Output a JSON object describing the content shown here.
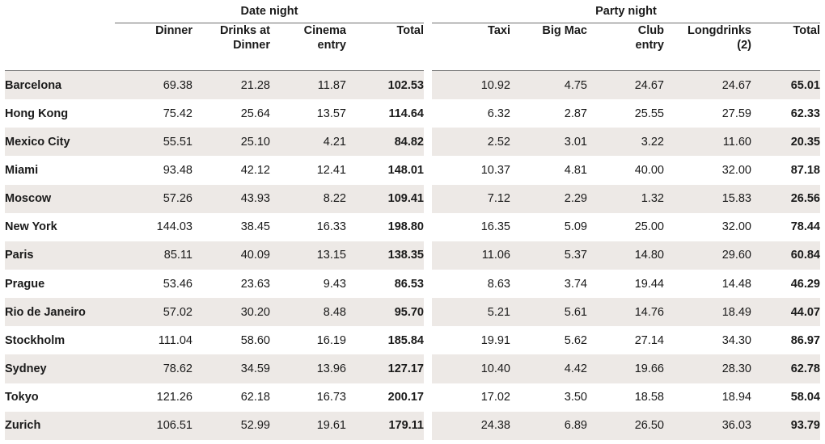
{
  "chart_data": {
    "type": "table",
    "groups": [
      {
        "name": "Date night",
        "columns": [
          "Dinner",
          "Drinks at Dinner",
          "Cinema entry",
          "Total"
        ]
      },
      {
        "name": "Party night",
        "columns": [
          "Taxi",
          "Big Mac",
          "Club entry",
          "Longdrinks (2)",
          "Total"
        ]
      }
    ],
    "header_lines": {
      "date": [
        [
          "Dinner"
        ],
        [
          "Drinks at",
          "Dinner"
        ],
        [
          "Cinema",
          "entry"
        ],
        [
          "Total"
        ]
      ],
      "party": [
        [
          "Taxi"
        ],
        [
          "Big Mac"
        ],
        [
          "Club",
          "entry"
        ],
        [
          "Longdrinks",
          "(2)"
        ],
        [
          "Total"
        ]
      ]
    },
    "rows": [
      {
        "city": "Barcelona",
        "date": [
          "69.38",
          "21.28",
          "11.87",
          "102.53"
        ],
        "party": [
          "10.92",
          "4.75",
          "24.67",
          "24.67",
          "65.01"
        ]
      },
      {
        "city": "Hong Kong",
        "date": [
          "75.42",
          "25.64",
          "13.57",
          "114.64"
        ],
        "party": [
          "6.32",
          "2.87",
          "25.55",
          "27.59",
          "62.33"
        ]
      },
      {
        "city": "Mexico City",
        "date": [
          "55.51",
          "25.10",
          "4.21",
          "84.82"
        ],
        "party": [
          "2.52",
          "3.01",
          "3.22",
          "11.60",
          "20.35"
        ]
      },
      {
        "city": "Miami",
        "date": [
          "93.48",
          "42.12",
          "12.41",
          "148.01"
        ],
        "party": [
          "10.37",
          "4.81",
          "40.00",
          "32.00",
          "87.18"
        ]
      },
      {
        "city": "Moscow",
        "date": [
          "57.26",
          "43.93",
          "8.22",
          "109.41"
        ],
        "party": [
          "7.12",
          "2.29",
          "1.32",
          "15.83",
          "26.56"
        ]
      },
      {
        "city": "New York",
        "date": [
          "144.03",
          "38.45",
          "16.33",
          "198.80"
        ],
        "party": [
          "16.35",
          "5.09",
          "25.00",
          "32.00",
          "78.44"
        ]
      },
      {
        "city": "Paris",
        "date": [
          "85.11",
          "40.09",
          "13.15",
          "138.35"
        ],
        "party": [
          "11.06",
          "5.37",
          "14.80",
          "29.60",
          "60.84"
        ]
      },
      {
        "city": "Prague",
        "date": [
          "53.46",
          "23.63",
          "9.43",
          "86.53"
        ],
        "party": [
          "8.63",
          "3.74",
          "19.44",
          "14.48",
          "46.29"
        ]
      },
      {
        "city": "Rio de Janeiro",
        "date": [
          "57.02",
          "30.20",
          "8.48",
          "95.70"
        ],
        "party": [
          "5.21",
          "5.61",
          "14.76",
          "18.49",
          "44.07"
        ]
      },
      {
        "city": "Stockholm",
        "date": [
          "111.04",
          "58.60",
          "16.19",
          "185.84"
        ],
        "party": [
          "19.91",
          "5.62",
          "27.14",
          "34.30",
          "86.97"
        ]
      },
      {
        "city": "Sydney",
        "date": [
          "78.62",
          "34.59",
          "13.96",
          "127.17"
        ],
        "party": [
          "10.40",
          "4.42",
          "19.66",
          "28.30",
          "62.78"
        ]
      },
      {
        "city": "Tokyo",
        "date": [
          "121.26",
          "62.18",
          "16.73",
          "200.17"
        ],
        "party": [
          "17.02",
          "3.50",
          "18.58",
          "18.94",
          "58.04"
        ]
      },
      {
        "city": "Zurich",
        "date": [
          "106.51",
          "52.99",
          "19.61",
          "179.11"
        ],
        "party": [
          "24.38",
          "6.89",
          "26.50",
          "36.03",
          "93.79"
        ]
      }
    ],
    "colors": {
      "stripe": "#ede9e6",
      "rule": "#6f6f6f",
      "text": "#1a1a1a"
    }
  }
}
